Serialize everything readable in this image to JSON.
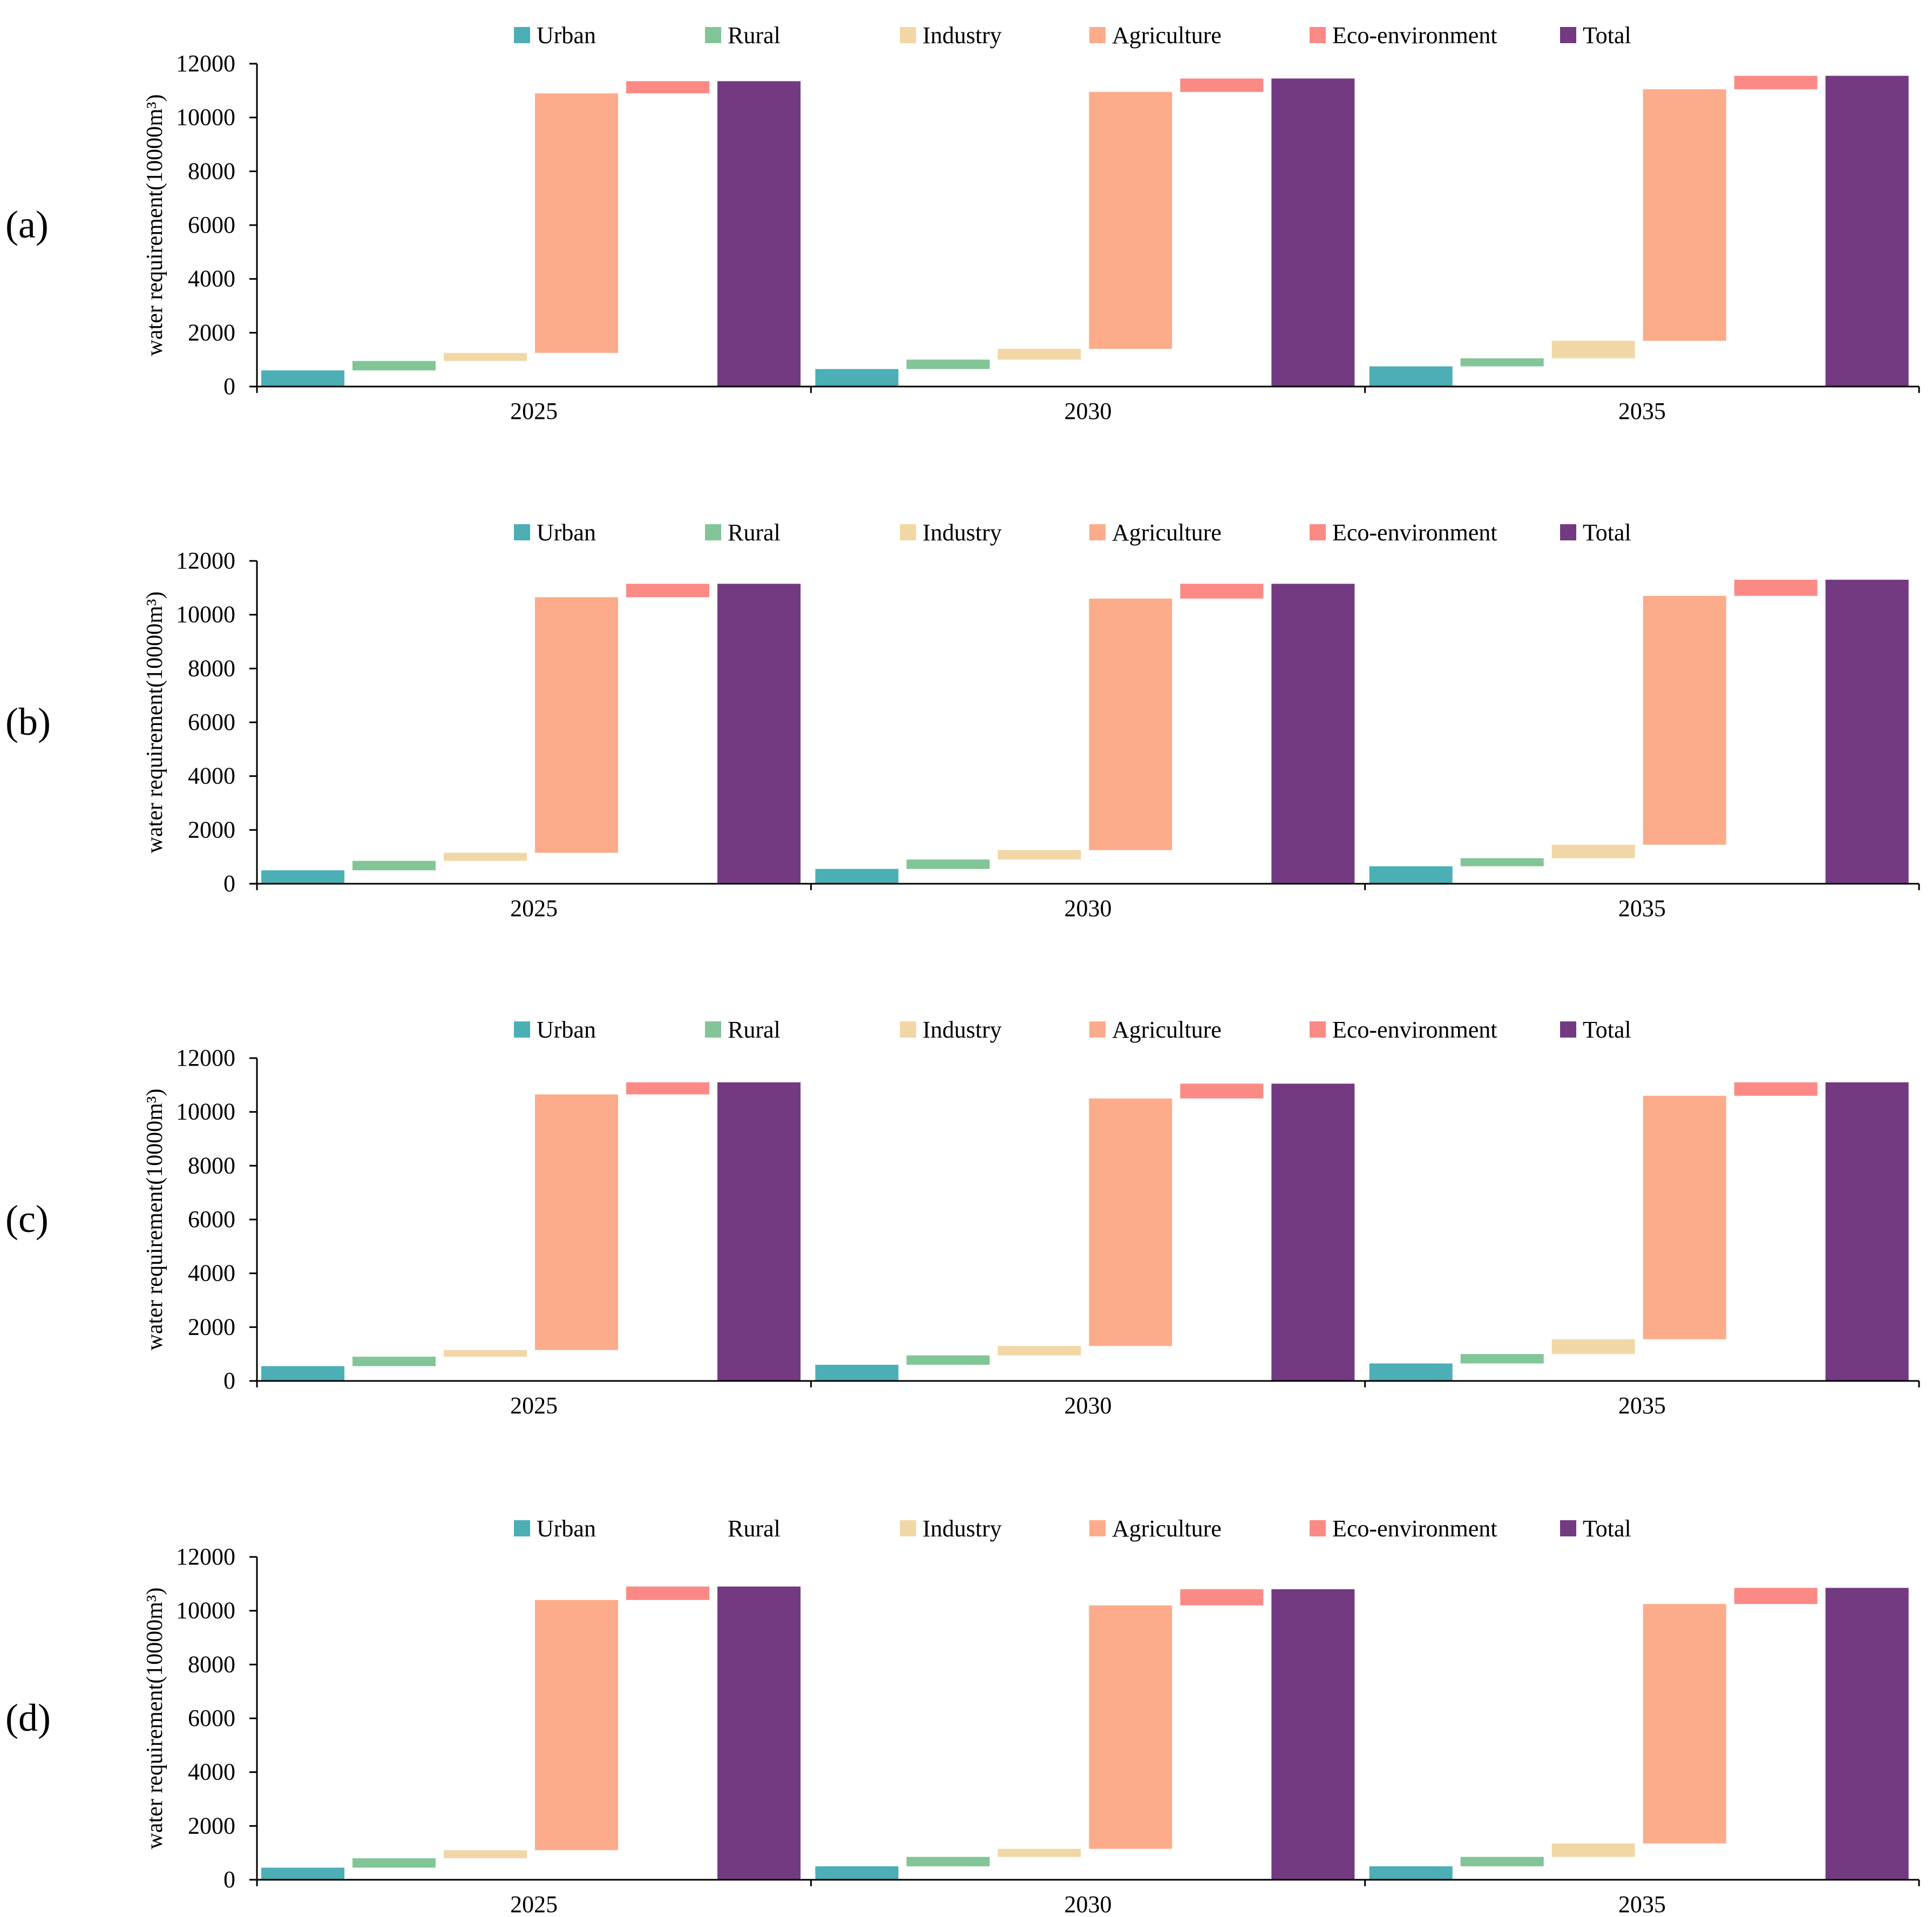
{
  "chart_data": [
    {
      "type": "bar",
      "panel_label": "(a)",
      "ylabel": "water requirement(10000m³)",
      "ylim": [
        0,
        12000
      ],
      "yticks": [
        0,
        2000,
        4000,
        6000,
        8000,
        10000,
        12000
      ],
      "categories": [
        "2025",
        "2030",
        "2035"
      ],
      "legend_position": "top",
      "series": [
        {
          "name": "Urban",
          "color": "#4BAFB5",
          "ranges": [
            [
              0,
              600
            ],
            [
              0,
              650
            ],
            [
              0,
              750
            ]
          ]
        },
        {
          "name": "Rural",
          "color": "#82C596",
          "ranges": [
            [
              600,
              950
            ],
            [
              650,
              1000
            ],
            [
              750,
              1050
            ]
          ]
        },
        {
          "name": "Industry",
          "color": "#F2D7A6",
          "ranges": [
            [
              950,
              1250
            ],
            [
              1000,
              1400
            ],
            [
              1050,
              1700
            ]
          ]
        },
        {
          "name": "Agriculture",
          "color": "#FCAC8A",
          "ranges": [
            [
              1250,
              10900
            ],
            [
              1400,
              10950
            ],
            [
              1700,
              11050
            ]
          ]
        },
        {
          "name": "Eco-environment",
          "color": "#FB8A86",
          "ranges": [
            [
              10900,
              11350
            ],
            [
              10950,
              11450
            ],
            [
              11050,
              11550
            ]
          ]
        },
        {
          "name": "Total",
          "color": "#733A82",
          "ranges": [
            [
              0,
              11350
            ],
            [
              0,
              11450
            ],
            [
              0,
              11550
            ]
          ]
        }
      ]
    },
    {
      "type": "bar",
      "panel_label": "(b)",
      "ylabel": "water requirement(10000m³)",
      "ylim": [
        0,
        12000
      ],
      "yticks": [
        0,
        2000,
        4000,
        6000,
        8000,
        10000,
        12000
      ],
      "categories": [
        "2025",
        "2030",
        "2035"
      ],
      "legend_position": "top",
      "series": [
        {
          "name": "Urban",
          "color": "#4BAFB5",
          "ranges": [
            [
              0,
              500
            ],
            [
              0,
              550
            ],
            [
              0,
              650
            ]
          ]
        },
        {
          "name": "Rural",
          "color": "#82C596",
          "ranges": [
            [
              500,
              850
            ],
            [
              550,
              900
            ],
            [
              650,
              950
            ]
          ]
        },
        {
          "name": "Industry",
          "color": "#F2D7A6",
          "ranges": [
            [
              850,
              1150
            ],
            [
              900,
              1250
            ],
            [
              950,
              1450
            ]
          ]
        },
        {
          "name": "Agriculture",
          "color": "#FCAC8A",
          "ranges": [
            [
              1150,
              10650
            ],
            [
              1250,
              10600
            ],
            [
              1450,
              10700
            ]
          ]
        },
        {
          "name": "Eco-environment",
          "color": "#FB8A86",
          "ranges": [
            [
              10650,
              11150
            ],
            [
              10600,
              11150
            ],
            [
              10700,
              11300
            ]
          ]
        },
        {
          "name": "Total",
          "color": "#733A82",
          "ranges": [
            [
              0,
              11150
            ],
            [
              0,
              11150
            ],
            [
              0,
              11300
            ]
          ]
        }
      ]
    },
    {
      "type": "bar",
      "panel_label": "(c)",
      "ylabel": "water requirement(10000m³)",
      "ylim": [
        0,
        12000
      ],
      "yticks": [
        0,
        2000,
        4000,
        6000,
        8000,
        10000,
        12000
      ],
      "categories": [
        "2025",
        "2030",
        "2035"
      ],
      "legend_position": "top",
      "series": [
        {
          "name": "Urban",
          "color": "#4BAFB5",
          "ranges": [
            [
              0,
              550
            ],
            [
              0,
              600
            ],
            [
              0,
              650
            ]
          ]
        },
        {
          "name": "Rural",
          "color": "#82C596",
          "ranges": [
            [
              550,
              900
            ],
            [
              600,
              950
            ],
            [
              650,
              1000
            ]
          ]
        },
        {
          "name": "Industry",
          "color": "#F2D7A6",
          "ranges": [
            [
              900,
              1150
            ],
            [
              950,
              1300
            ],
            [
              1000,
              1550
            ]
          ]
        },
        {
          "name": "Agriculture",
          "color": "#FCAC8A",
          "ranges": [
            [
              1150,
              10650
            ],
            [
              1300,
              10500
            ],
            [
              1550,
              10600
            ]
          ]
        },
        {
          "name": "Eco-environment",
          "color": "#FB8A86",
          "ranges": [
            [
              10650,
              11100
            ],
            [
              10500,
              11050
            ],
            [
              10600,
              11100
            ]
          ]
        },
        {
          "name": "Total",
          "color": "#733A82",
          "ranges": [
            [
              0,
              11100
            ],
            [
              0,
              11050
            ],
            [
              0,
              11100
            ]
          ]
        }
      ]
    },
    {
      "type": "bar",
      "panel_label": "(d)",
      "ylabel": "water requirement(10000m³)",
      "ylim": [
        0,
        12000
      ],
      "yticks": [
        0,
        2000,
        4000,
        6000,
        8000,
        10000,
        12000
      ],
      "categories": [
        "2025",
        "2030",
        "2035"
      ],
      "legend_position": "top",
      "series": [
        {
          "name": "Urban",
          "color": "#4BAFB5",
          "ranges": [
            [
              0,
              450
            ],
            [
              0,
              500
            ],
            [
              0,
              500
            ]
          ]
        },
        {
          "name": "Rural",
          "color": "#82C596",
          "show_legend_swatch": false,
          "ranges": [
            [
              450,
              800
            ],
            [
              500,
              850
            ],
            [
              500,
              850
            ]
          ]
        },
        {
          "name": "Industry",
          "color": "#F2D7A6",
          "ranges": [
            [
              800,
              1100
            ],
            [
              850,
              1150
            ],
            [
              850,
              1350
            ]
          ]
        },
        {
          "name": "Agriculture",
          "color": "#FCAC8A",
          "ranges": [
            [
              1100,
              10400
            ],
            [
              1150,
              10200
            ],
            [
              1350,
              10250
            ]
          ]
        },
        {
          "name": "Eco-environment",
          "color": "#FB8A86",
          "ranges": [
            [
              10400,
              10900
            ],
            [
              10200,
              10800
            ],
            [
              10250,
              10850
            ]
          ]
        },
        {
          "name": "Total",
          "color": "#733A82",
          "ranges": [
            [
              0,
              10900
            ],
            [
              0,
              10800
            ],
            [
              0,
              10850
            ]
          ]
        }
      ]
    }
  ]
}
